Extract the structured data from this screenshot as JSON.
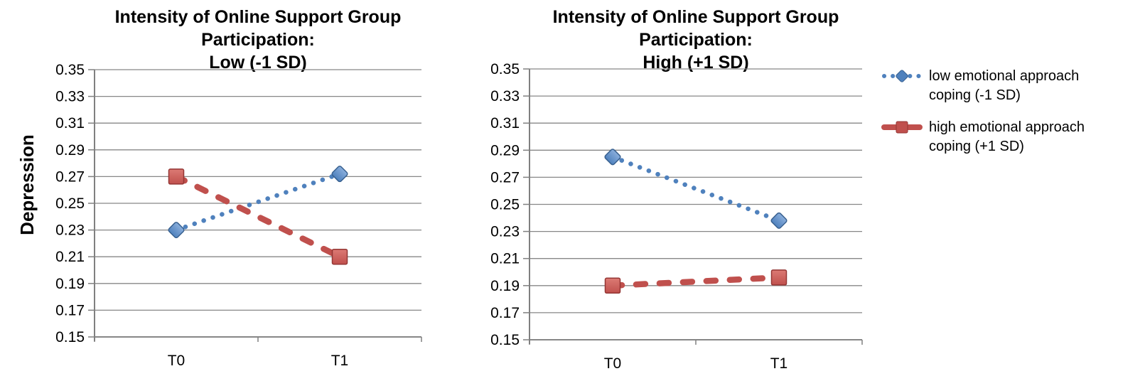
{
  "figure": {
    "background": "#FFFFFF",
    "gridline_color": "#878787",
    "axis_color": "#808080",
    "text_color": "#000000"
  },
  "chart_data": [
    {
      "type": "line",
      "title": "Intensity of Online Support Group Participation: Low (-1 SD)",
      "title_line1": "Intensity of Online Support Group Participation:",
      "title_line2": "Low (-1 SD)",
      "xlabel": "",
      "ylabel": "Depression",
      "ylim": [
        0.15,
        0.35
      ],
      "ytick_step": 0.02,
      "yticks": [
        "0.35",
        "0.33",
        "0.31",
        "0.29",
        "0.27",
        "0.25",
        "0.23",
        "0.21",
        "0.19",
        "0.17",
        "0.15"
      ],
      "categories": [
        "T0",
        "T1"
      ],
      "grid": true,
      "series": [
        {
          "name": "low emotional approach coping (-1 SD)",
          "values": [
            0.23,
            0.272
          ],
          "color": "#4F81BD",
          "color_light": "#8AAEDC",
          "color_dark": "#38608F",
          "marker": "diamond",
          "line_style": "dotted"
        },
        {
          "name": "high emotional approach coping (+1 SD)",
          "values": [
            0.27,
            0.21
          ],
          "color": "#C0504D",
          "color_light": "#DC7A74",
          "color_dark": "#943634",
          "marker": "square",
          "line_style": "dashed"
        }
      ]
    },
    {
      "type": "line",
      "title": "Intensity of Online Support Group Participation: High (+1 SD)",
      "title_line1": "Intensity of Online Support Group Participation:",
      "title_line2": "High (+1 SD)",
      "xlabel": "",
      "ylabel": "",
      "ylim": [
        0.15,
        0.35
      ],
      "ytick_step": 0.02,
      "yticks": [
        "0.35",
        "0.33",
        "0.31",
        "0.29",
        "0.27",
        "0.25",
        "0.23",
        "0.21",
        "0.19",
        "0.17",
        "0.15"
      ],
      "categories": [
        "T0",
        "T1"
      ],
      "grid": true,
      "series": [
        {
          "name": "low emotional approach coping (-1 SD)",
          "values": [
            0.285,
            0.238
          ],
          "color": "#4F81BD",
          "color_light": "#8AAEDC",
          "color_dark": "#38608F",
          "marker": "diamond",
          "line_style": "dotted"
        },
        {
          "name": "high emotional approach coping (+1 SD)",
          "values": [
            0.19,
            0.196
          ],
          "color": "#C0504D",
          "color_light": "#DC7A74",
          "color_dark": "#943634",
          "marker": "square",
          "line_style": "dashed"
        }
      ]
    }
  ],
  "legend": {
    "position": "right",
    "items": [
      {
        "label": "low emotional approach coping (-1 SD)",
        "color": "#4F81BD",
        "color_dark": "#38608F",
        "marker": "diamond",
        "line_style": "dotted"
      },
      {
        "label": "high emotional approach coping (+1 SD)",
        "color": "#C0504D",
        "color_dark": "#943634",
        "marker": "square",
        "line_style": "dashed"
      }
    ]
  }
}
